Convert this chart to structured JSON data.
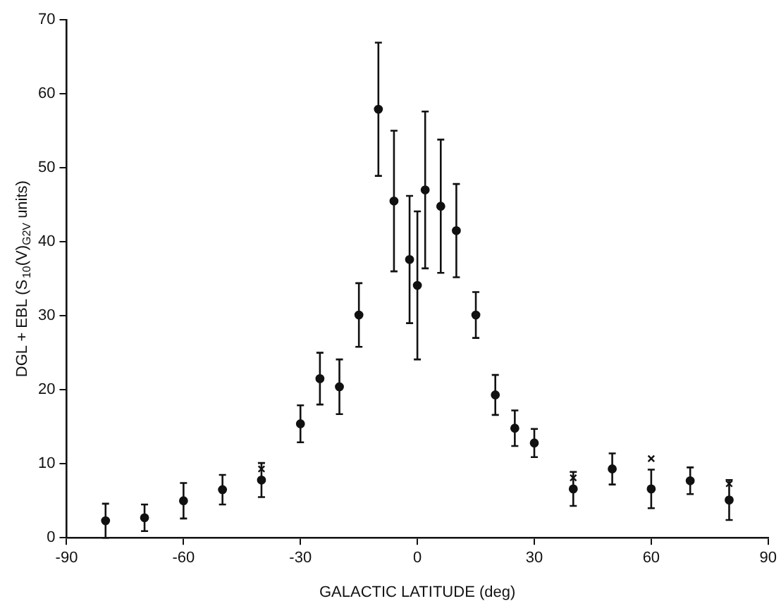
{
  "chart_data": {
    "type": "scatter",
    "xlabel": "GALACTIC LATITUDE (deg)",
    "ylabel": "DGL + EBL (S$_{10}$(V)$_{G2V}$ units)",
    "xlim": [
      -90,
      90
    ],
    "xticks": [
      -90,
      -60,
      -30,
      0,
      30,
      60,
      90
    ],
    "ylim": [
      0,
      70
    ],
    "yticks": [
      0,
      10,
      20,
      30,
      40,
      50,
      60,
      70
    ],
    "grid": false,
    "legend": false,
    "series": [
      {
        "color": "#111111",
        "marker": "circle",
        "x": [
          -80,
          -70,
          -60,
          -50,
          -40,
          -30,
          -25,
          -20,
          -15,
          -10,
          -6,
          -2,
          0,
          2,
          6,
          10,
          15,
          20,
          25,
          30,
          40,
          50,
          60,
          70,
          80
        ],
        "values": [
          2.3,
          2.7,
          5.0,
          6.5,
          7.8,
          15.4,
          21.5,
          20.4,
          30.1,
          57.9,
          45.5,
          37.6,
          34.1,
          47.0,
          44.8,
          41.5,
          30.1,
          19.3,
          14.8,
          12.8,
          6.6,
          9.3,
          6.6,
          7.7,
          5.1
        ],
        "errors": [
          2.3,
          1.8,
          2.4,
          2.0,
          2.3,
          2.5,
          3.5,
          3.7,
          4.3,
          9.0,
          9.5,
          8.6,
          10,
          10.6,
          9,
          6.3,
          3.1,
          2.7,
          2.4,
          1.9,
          2.3,
          2.1,
          2.6,
          1.8,
          2.7
        ]
      },
      {
        "color": "#111111",
        "marker": "cross",
        "x": [
          -40,
          40,
          60,
          80
        ],
        "values": [
          9.3,
          8.1,
          10.7,
          7.3
        ]
      }
    ]
  }
}
